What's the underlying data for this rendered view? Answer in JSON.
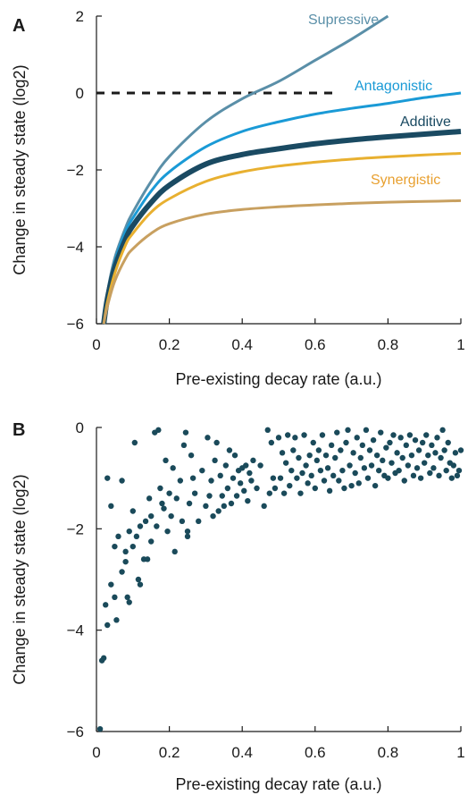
{
  "chart_data": [
    {
      "panel": "A",
      "type": "line",
      "xlabel": "Pre-existing decay rate (a.u.)",
      "ylabel": "Change in steady state (log2)",
      "xlim": [
        0,
        1
      ],
      "ylim": [
        -6,
        2
      ],
      "xticks": [
        "0",
        "0.2",
        "0.4",
        "0.6",
        "0.8",
        "1"
      ],
      "yticks": [
        "−6",
        "−4",
        "−2",
        "0",
        "2"
      ],
      "grid": false,
      "reference_line": {
        "y": 0,
        "x_range": [
          0,
          0.65
        ],
        "style": "dashed",
        "color": "#1a1a1a"
      },
      "series": [
        {
          "name": "Supressive",
          "color": "#5a8fa8",
          "label_color": "#5a8fa8",
          "width": 3,
          "x": [
            0.02,
            0.03,
            0.05,
            0.08,
            0.1,
            0.15,
            0.2,
            0.3,
            0.4,
            0.5,
            0.6,
            0.7,
            0.8
          ],
          "y": [
            -6.0,
            -5.2,
            -4.3,
            -3.5,
            -3.1,
            -2.3,
            -1.65,
            -0.75,
            -0.15,
            0.3,
            0.85,
            1.4,
            2.0
          ]
        },
        {
          "name": "Antagonistic",
          "color": "#1a9ad6",
          "label_color": "#1a9ad6",
          "width": 3,
          "x": [
            0.02,
            0.03,
            0.05,
            0.08,
            0.1,
            0.15,
            0.2,
            0.3,
            0.4,
            0.5,
            0.6,
            0.7,
            0.8,
            0.9,
            1.0
          ],
          "y": [
            -6.0,
            -5.3,
            -4.4,
            -3.6,
            -3.25,
            -2.55,
            -2.05,
            -1.4,
            -1.0,
            -0.75,
            -0.55,
            -0.4,
            -0.27,
            -0.12,
            0.0
          ]
        },
        {
          "name": "Additive",
          "color": "#1a4a62",
          "label_color": "#1a4a62",
          "width": 6,
          "x": [
            0.02,
            0.03,
            0.05,
            0.08,
            0.1,
            0.15,
            0.2,
            0.3,
            0.4,
            0.5,
            0.6,
            0.7,
            0.8,
            0.9,
            1.0
          ],
          "y": [
            -6.0,
            -5.35,
            -4.55,
            -3.8,
            -3.45,
            -2.85,
            -2.4,
            -1.85,
            -1.6,
            -1.45,
            -1.32,
            -1.22,
            -1.14,
            -1.07,
            -1.0
          ]
        },
        {
          "name": "Synergistic",
          "color": "#e8b030",
          "label_color": "#e8a030",
          "width": 3,
          "x": [
            0.02,
            0.03,
            0.05,
            0.08,
            0.1,
            0.15,
            0.2,
            0.3,
            0.4,
            0.5,
            0.6,
            0.7,
            0.8,
            0.9,
            1.0
          ],
          "y": [
            -6.0,
            -5.45,
            -4.7,
            -3.95,
            -3.65,
            -3.1,
            -2.75,
            -2.3,
            -2.05,
            -1.9,
            -1.8,
            -1.72,
            -1.66,
            -1.61,
            -1.57
          ]
        },
        {
          "name": "",
          "color": "#c8a060",
          "width": 3,
          "x": [
            0.02,
            0.03,
            0.05,
            0.08,
            0.1,
            0.15,
            0.2,
            0.3,
            0.4,
            0.5,
            0.6,
            0.7,
            0.8,
            0.9,
            1.0
          ],
          "y": [
            -6.0,
            -5.55,
            -4.9,
            -4.3,
            -4.05,
            -3.65,
            -3.4,
            -3.15,
            -3.03,
            -2.96,
            -2.91,
            -2.87,
            -2.84,
            -2.82,
            -2.8
          ]
        }
      ]
    },
    {
      "panel": "B",
      "type": "scatter",
      "xlabel": "Pre-existing decay rate (a.u.)",
      "ylabel": "Change in steady state (log2)",
      "xlim": [
        0,
        1
      ],
      "ylim": [
        -6,
        0
      ],
      "xticks": [
        "0",
        "0.2",
        "0.4",
        "0.6",
        "0.8",
        "1"
      ],
      "yticks": [
        "−6",
        "−4",
        "−2",
        "0"
      ],
      "grid": false,
      "point_color": "#1a4a5a",
      "points": [
        [
          0.01,
          -5.95
        ],
        [
          0.015,
          -4.6
        ],
        [
          0.02,
          -4.55
        ],
        [
          0.025,
          -3.5
        ],
        [
          0.03,
          -1.0
        ],
        [
          0.03,
          -3.9
        ],
        [
          0.04,
          -1.55
        ],
        [
          0.04,
          -3.1
        ],
        [
          0.05,
          -2.35
        ],
        [
          0.05,
          -3.35
        ],
        [
          0.055,
          -3.8
        ],
        [
          0.06,
          -2.15
        ],
        [
          0.07,
          -1.05
        ],
        [
          0.07,
          -2.85
        ],
        [
          0.08,
          -2.45
        ],
        [
          0.08,
          -2.65
        ],
        [
          0.085,
          -3.35
        ],
        [
          0.09,
          -3.45
        ],
        [
          0.09,
          -2.05
        ],
        [
          0.1,
          -1.65
        ],
        [
          0.1,
          -2.35
        ],
        [
          0.105,
          -0.3
        ],
        [
          0.11,
          -2.15
        ],
        [
          0.115,
          -3.0
        ],
        [
          0.12,
          -1.95
        ],
        [
          0.12,
          -3.1
        ],
        [
          0.13,
          -2.6
        ],
        [
          0.135,
          -1.85
        ],
        [
          0.14,
          -2.6
        ],
        [
          0.145,
          -1.4
        ],
        [
          0.15,
          -1.75
        ],
        [
          0.15,
          -2.25
        ],
        [
          0.16,
          -0.1
        ],
        [
          0.165,
          -1.95
        ],
        [
          0.17,
          -0.05
        ],
        [
          0.175,
          -1.2
        ],
        [
          0.18,
          -1.5
        ],
        [
          0.185,
          -1.6
        ],
        [
          0.19,
          -0.65
        ],
        [
          0.195,
          -2.05
        ],
        [
          0.2,
          -1.3
        ],
        [
          0.205,
          -1.75
        ],
        [
          0.21,
          -0.8
        ],
        [
          0.215,
          -2.45
        ],
        [
          0.22,
          -1.4
        ],
        [
          0.23,
          -1.05
        ],
        [
          0.235,
          -1.85
        ],
        [
          0.24,
          -0.35
        ],
        [
          0.245,
          -0.1
        ],
        [
          0.25,
          -2.15
        ],
        [
          0.25,
          -2.05
        ],
        [
          0.255,
          -1.5
        ],
        [
          0.26,
          -0.55
        ],
        [
          0.265,
          -1.0
        ],
        [
          0.27,
          -1.3
        ],
        [
          0.28,
          -1.85
        ],
        [
          0.29,
          -0.85
        ],
        [
          0.3,
          -1.55
        ],
        [
          0.305,
          -0.2
        ],
        [
          0.31,
          -1.35
        ],
        [
          0.315,
          -1.05
        ],
        [
          0.32,
          -1.75
        ],
        [
          0.325,
          -0.65
        ],
        [
          0.33,
          -0.3
        ],
        [
          0.335,
          -1.65
        ],
        [
          0.34,
          -0.95
        ],
        [
          0.345,
          -1.35
        ],
        [
          0.35,
          -1.55
        ],
        [
          0.355,
          -0.75
        ],
        [
          0.36,
          -1.2
        ],
        [
          0.365,
          -0.45
        ],
        [
          0.37,
          -1.5
        ],
        [
          0.375,
          -1.0
        ],
        [
          0.38,
          -0.55
        ],
        [
          0.385,
          -1.35
        ],
        [
          0.39,
          -0.85
        ],
        [
          0.395,
          -1.1
        ],
        [
          0.4,
          -0.8
        ],
        [
          0.405,
          -1.25
        ],
        [
          0.41,
          -0.75
        ],
        [
          0.415,
          -1.45
        ],
        [
          0.42,
          -0.9
        ],
        [
          0.425,
          -1.05
        ],
        [
          0.43,
          -0.65
        ],
        [
          0.44,
          -1.2
        ],
        [
          0.45,
          -0.75
        ],
        [
          0.46,
          -1.55
        ],
        [
          0.47,
          -0.05
        ],
        [
          0.475,
          -1.3
        ],
        [
          0.48,
          -0.3
        ],
        [
          0.485,
          -1.0
        ],
        [
          0.49,
          -1.2
        ],
        [
          0.5,
          -0.2
        ],
        [
          0.505,
          -1.0
        ],
        [
          0.51,
          -0.5
        ],
        [
          0.515,
          -1.3
        ],
        [
          0.52,
          -0.7
        ],
        [
          0.525,
          -0.15
        ],
        [
          0.53,
          -1.15
        ],
        [
          0.535,
          -0.85
        ],
        [
          0.54,
          -0.45
        ],
        [
          0.545,
          -0.2
        ],
        [
          0.55,
          -1.0
        ],
        [
          0.555,
          -0.6
        ],
        [
          0.56,
          -1.3
        ],
        [
          0.565,
          -0.9
        ],
        [
          0.57,
          -0.15
        ],
        [
          0.575,
          -0.75
        ],
        [
          0.58,
          -1.1
        ],
        [
          0.585,
          -0.55
        ],
        [
          0.59,
          -0.95
        ],
        [
          0.595,
          -0.3
        ],
        [
          0.6,
          -1.2
        ],
        [
          0.605,
          -0.65
        ],
        [
          0.61,
          -0.45
        ],
        [
          0.615,
          -0.85
        ],
        [
          0.62,
          -0.15
        ],
        [
          0.625,
          -1.05
        ],
        [
          0.63,
          -0.55
        ],
        [
          0.635,
          -0.8
        ],
        [
          0.64,
          -1.25
        ],
        [
          0.645,
          -0.35
        ],
        [
          0.65,
          -0.95
        ],
        [
          0.655,
          -0.6
        ],
        [
          0.66,
          -0.1
        ],
        [
          0.665,
          -1.05
        ],
        [
          0.67,
          -0.45
        ],
        [
          0.675,
          -0.85
        ],
        [
          0.68,
          -1.2
        ],
        [
          0.685,
          -0.3
        ],
        [
          0.69,
          -0.05
        ],
        [
          0.695,
          -0.75
        ],
        [
          0.7,
          -1.15
        ],
        [
          0.705,
          -0.5
        ],
        [
          0.71,
          -0.9
        ],
        [
          0.715,
          -0.2
        ],
        [
          0.72,
          -1.1
        ],
        [
          0.725,
          -0.6
        ],
        [
          0.73,
          -0.35
        ],
        [
          0.735,
          -0.8
        ],
        [
          0.74,
          -0.05
        ],
        [
          0.745,
          -1.0
        ],
        [
          0.75,
          -0.45
        ],
        [
          0.755,
          -0.75
        ],
        [
          0.76,
          -0.25
        ],
        [
          0.765,
          -1.15
        ],
        [
          0.77,
          -0.55
        ],
        [
          0.775,
          -0.85
        ],
        [
          0.78,
          -0.1
        ],
        [
          0.785,
          -0.65
        ],
        [
          0.79,
          -0.95
        ],
        [
          0.795,
          -0.4
        ],
        [
          0.8,
          -1.0
        ],
        [
          0.805,
          -0.3
        ],
        [
          0.81,
          -0.7
        ],
        [
          0.815,
          -0.15
        ],
        [
          0.82,
          -0.9
        ],
        [
          0.825,
          -0.5
        ],
        [
          0.83,
          -0.85
        ],
        [
          0.835,
          -0.2
        ],
        [
          0.84,
          -0.6
        ],
        [
          0.845,
          -1.05
        ],
        [
          0.85,
          -0.35
        ],
        [
          0.855,
          -0.75
        ],
        [
          0.86,
          -0.15
        ],
        [
          0.865,
          -0.55
        ],
        [
          0.87,
          -0.95
        ],
        [
          0.875,
          -0.25
        ],
        [
          0.88,
          -0.8
        ],
        [
          0.885,
          -0.45
        ],
        [
          0.89,
          -1.0
        ],
        [
          0.895,
          -0.3
        ],
        [
          0.9,
          -0.7
        ],
        [
          0.905,
          -0.15
        ],
        [
          0.91,
          -0.55
        ],
        [
          0.915,
          -0.9
        ],
        [
          0.92,
          -0.35
        ],
        [
          0.925,
          -0.8
        ],
        [
          0.93,
          -0.5
        ],
        [
          0.935,
          -0.2
        ],
        [
          0.94,
          -0.95
        ],
        [
          0.945,
          -0.6
        ],
        [
          0.95,
          -0.05
        ],
        [
          0.955,
          -0.45
        ],
        [
          0.96,
          -0.85
        ],
        [
          0.965,
          -0.3
        ],
        [
          0.97,
          -0.7
        ],
        [
          0.975,
          -1.0
        ],
        [
          0.98,
          -0.75
        ],
        [
          0.985,
          -0.5
        ],
        [
          0.99,
          -0.95
        ],
        [
          0.995,
          -0.85
        ],
        [
          1.0,
          -0.45
        ]
      ]
    }
  ]
}
